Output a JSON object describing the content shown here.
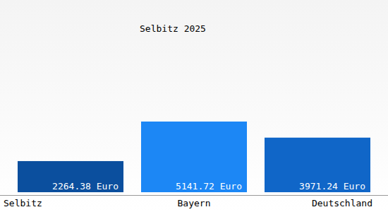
{
  "chart_data": {
    "type": "bar",
    "title": "Selbitz 2025",
    "categories": [
      "Selbitz",
      "Bayern",
      "Deutschland"
    ],
    "values": [
      2264.38,
      5141.72,
      3971.24
    ],
    "value_labels": [
      "2264.38 Euro",
      "5141.72 Euro",
      "3971.24 Euro"
    ],
    "colors": [
      "#0b4f9e",
      "#1c87f5",
      "#1066c8"
    ],
    "data_labels": true,
    "tick_labels": "x",
    "grid": false
  }
}
